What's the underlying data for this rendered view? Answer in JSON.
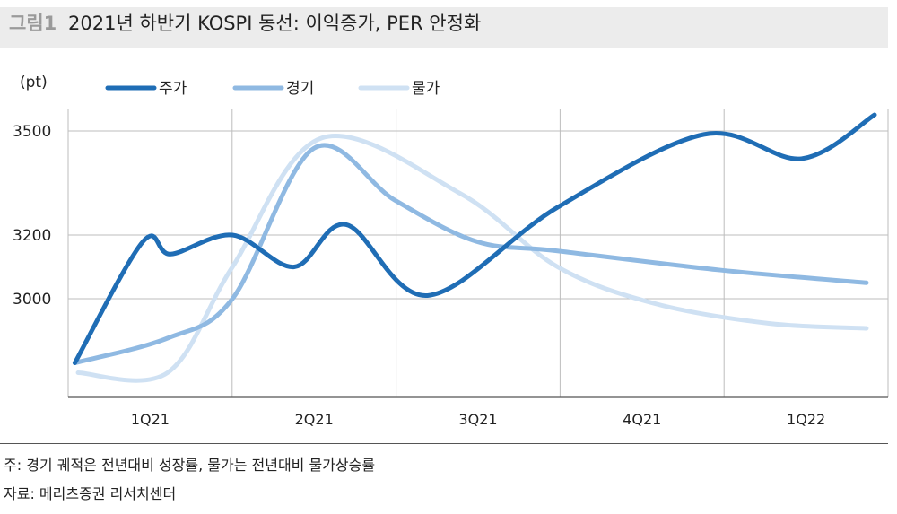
{
  "header": {
    "figure_label": "그림1",
    "title": "2021년 하반기 KOSPI 동선: 이익증가, PER 안정화"
  },
  "footnotes": {
    "note": "주: 경기 궤적은 전년대비 성장률, 물가는 전년대비 물가상승률",
    "source": "자료: 메리츠증권 리서치센터"
  },
  "chart_data": {
    "type": "line",
    "y_unit_label": "(pt)",
    "y_ticks": [
      3000,
      3200,
      3500
    ],
    "y_range": [
      2800,
      3540
    ],
    "x_categories": [
      "1Q21",
      "2Q21",
      "3Q21",
      "4Q21",
      "1Q22"
    ],
    "x_range": [
      0,
      5
    ],
    "legend_position": "top-left",
    "grid": true,
    "series": [
      {
        "name": "주가",
        "color": "#1f6db5",
        "width": 5,
        "points": [
          [
            0.03,
            2870
          ],
          [
            0.45,
            3180
          ],
          [
            0.62,
            3140
          ],
          [
            1.0,
            3200
          ],
          [
            1.38,
            3100
          ],
          [
            1.7,
            3230
          ],
          [
            2.2,
            3010
          ],
          [
            3.0,
            3280
          ],
          [
            3.9,
            3490
          ],
          [
            4.5,
            3420
          ],
          [
            4.95,
            3550
          ]
        ]
      },
      {
        "name": "경기",
        "color": "#8fb9e2",
        "width": 5,
        "points": [
          [
            0.03,
            2870
          ],
          [
            0.6,
            2920
          ],
          [
            1.0,
            3000
          ],
          [
            1.5,
            3450
          ],
          [
            2.0,
            3300
          ],
          [
            2.5,
            3180
          ],
          [
            3.0,
            3150
          ],
          [
            4.0,
            3090
          ],
          [
            4.9,
            3050
          ]
        ]
      },
      {
        "name": "물가",
        "color": "#cfe1f3",
        "width": 5,
        "points": [
          [
            0.05,
            2850
          ],
          [
            0.6,
            2850
          ],
          [
            1.0,
            3100
          ],
          [
            1.55,
            3480
          ],
          [
            2.4,
            3320
          ],
          [
            3.0,
            3100
          ],
          [
            3.6,
            2990
          ],
          [
            4.3,
            2950
          ],
          [
            4.9,
            2940
          ]
        ]
      }
    ]
  }
}
